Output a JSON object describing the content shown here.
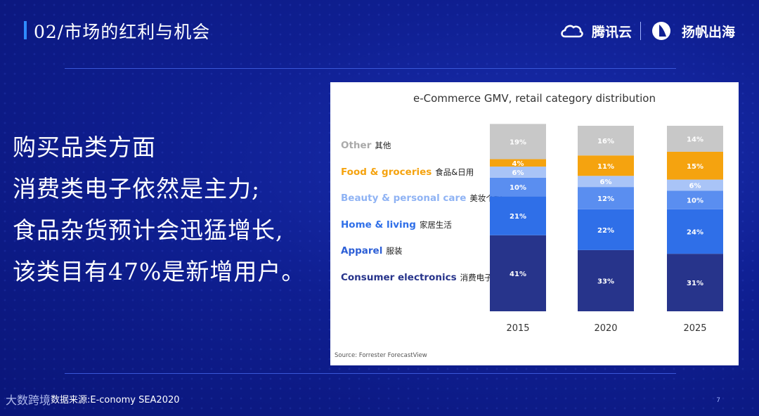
{
  "slide": {
    "title": "02/市场的红利与机会",
    "logo_tencent": "腾讯云",
    "logo_yangfan": "扬帆出海",
    "body_lines": [
      "购买品类方面",
      "消费类电子依然是主力;",
      "食品杂货预计会迅猛增长,",
      "该类目有47%是新增用户。"
    ],
    "footer_logo": "大数跨境",
    "footer_source": "数据来源:E-conomy SEA2020",
    "page_number": "7"
  },
  "chart_data": {
    "type": "bar",
    "stacked": true,
    "title": "e-Commerce GMV, retail category distribution",
    "source": "Source: Forrester ForecastView",
    "categories": [
      "2015",
      "2020",
      "2025"
    ],
    "series": [
      {
        "name": "Consumer electronics",
        "name_cn": "消费电子",
        "color": "#27348b",
        "label_color": "#27348b",
        "values": [
          41,
          33,
          31
        ]
      },
      {
        "name": "Apparel",
        "name_cn": "服装",
        "color": "#2d5fd6",
        "label_color": "#2d5fd6",
        "values": [
          0,
          0,
          0
        ]
      },
      {
        "name": "Home & living",
        "name_cn": "家居生活",
        "color": "#2f6fe8",
        "label_color": "#2f6fe8",
        "values": [
          21,
          22,
          24
        ]
      },
      {
        "name": "Beauty & personal care",
        "name_cn": "美妆个护",
        "color": "#5a8ef0",
        "label_color": "#8fb3f4",
        "values": [
          10,
          12,
          10
        ]
      },
      {
        "name": "",
        "name_cn": "",
        "color": "#a9c4f7",
        "label_color": "#a9c4f7",
        "values": [
          6,
          6,
          6
        ]
      },
      {
        "name": "Food & groceries",
        "name_cn": "食品&日用",
        "color": "#f5a30f",
        "label_color": "#f5a30f",
        "values": [
          4,
          11,
          15
        ]
      },
      {
        "name": "Other",
        "name_cn": "其他",
        "color": "#c8c8c8",
        "label_color": "#aaaaaa",
        "values": [
          19,
          16,
          14
        ]
      }
    ],
    "value_labels": [
      [
        "41%",
        "21%",
        "10%",
        "6%",
        "4%",
        "19%"
      ],
      [
        "33%",
        "22%",
        "12%",
        "6%",
        "11%",
        "16%"
      ],
      [
        "31%",
        "24%",
        "10%",
        "6%",
        "15%",
        "14%"
      ]
    ],
    "ylim": [
      0,
      100
    ],
    "legend_position": "left"
  }
}
